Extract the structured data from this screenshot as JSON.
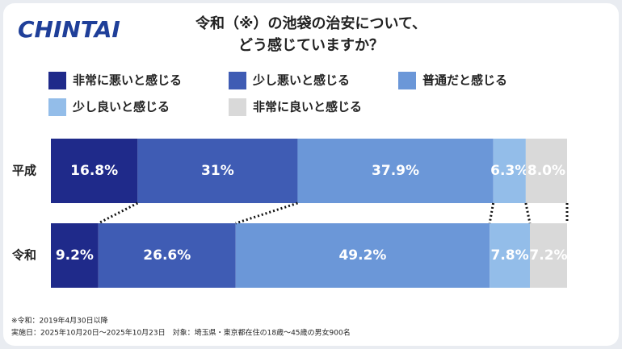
{
  "logo": "CHINTAI",
  "chart_data": {
    "type": "stacked-bar-horizontal",
    "title": [
      "令和（※）の池袋の治安について、",
      "どう感じていますか？"
    ],
    "categories": [
      "平成",
      "令和"
    ],
    "xlim": [
      0,
      100
    ],
    "series": [
      {
        "name": "非常に悪いと感じる",
        "color": "#1f2a8a",
        "values": [
          16.8,
          9.2
        ],
        "value_labels": [
          "16.8%",
          "9.2%"
        ]
      },
      {
        "name": "少し悪いと感じる",
        "color": "#3f5cb4",
        "values": [
          31,
          26.6
        ],
        "value_labels": [
          "31%",
          "26.6%"
        ]
      },
      {
        "name": "普通だと感じる",
        "color": "#6b97d8",
        "values": [
          37.9,
          49.2
        ],
        "value_labels": [
          "37.9%",
          "49.2%"
        ]
      },
      {
        "name": "少し良いと感じる",
        "color": "#93bde9",
        "values": [
          6.3,
          7.8
        ],
        "value_labels": [
          "6.3%",
          "7.8%"
        ]
      },
      {
        "name": "非常に良いと感じる",
        "color": "#d9d9d9",
        "values": [
          8.0,
          7.2
        ],
        "value_labels": [
          "8.0%",
          "7.2%"
        ]
      }
    ]
  },
  "notes": [
    "※令和：2019年4月30日以降",
    "実施日：2025年10月20日～2025年10月23日　対象：埼玉県・東京都在住の18歳～45歳の男女900名"
  ]
}
